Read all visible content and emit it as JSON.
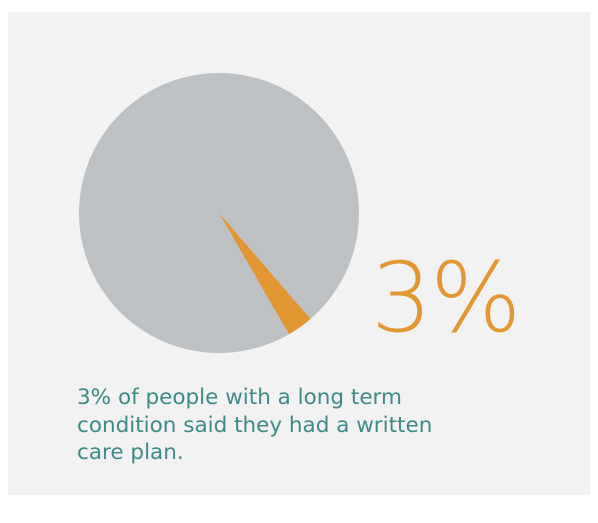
{
  "colors": {
    "card_background": "#f2f2f2",
    "pie_remainder": "#bdc1c4",
    "pie_highlight": "#e39733",
    "highlight_text": "#e39733",
    "caption_text": "#3d8a86"
  },
  "highlight_value": "3%",
  "caption_lines": [
    "3% of people with a long term",
    "condition said they had a written",
    "care plan."
  ],
  "chart_data": {
    "type": "pie",
    "slices": [
      {
        "label": "had a written care plan",
        "value": 3,
        "color": "#e39733"
      },
      {
        "label": "",
        "value": 97,
        "color": "#bdc1c4"
      }
    ],
    "start_angle_deg_clockwise_from_12": 150,
    "direction": "counterclockwise"
  }
}
